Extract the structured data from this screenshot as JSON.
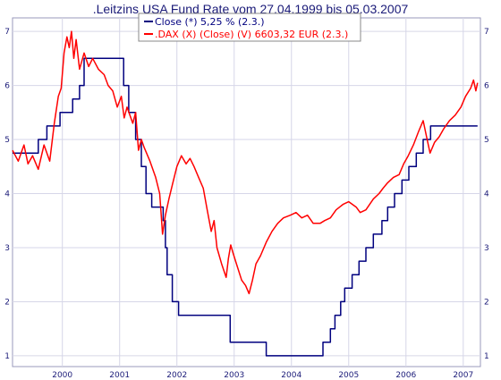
{
  "chart_data": {
    "type": "line",
    "title": ".Leitzins USA Fund Rate vom 27.04.1999 bis 05.03.2007",
    "xlim": [
      1999.05,
      2007.22
    ],
    "ylim": [
      0.8,
      7.25
    ],
    "x_ticks": [
      {
        "value": 1999.92,
        "label": "2000"
      },
      {
        "value": 2000.92,
        "label": "2001"
      },
      {
        "value": 2001.92,
        "label": "2002"
      },
      {
        "value": 2002.92,
        "label": "2003"
      },
      {
        "value": 2003.92,
        "label": "2004"
      },
      {
        "value": 2004.92,
        "label": "2005"
      },
      {
        "value": 2005.92,
        "label": "2006"
      },
      {
        "value": 2006.92,
        "label": "2007"
      }
    ],
    "y_ticks": [
      1,
      2,
      3,
      4,
      5,
      6,
      7
    ],
    "grid": true,
    "legend_placement": "top-center",
    "background": "#ffffff",
    "series": [
      {
        "name": "Close (*) 5,25 % (2.3.)",
        "color": "#00007f",
        "step": true,
        "points": [
          [
            1999.05,
            4.75
          ],
          [
            1999.5,
            5.0
          ],
          [
            1999.65,
            5.25
          ],
          [
            1999.88,
            5.5
          ],
          [
            2000.1,
            5.75
          ],
          [
            2000.22,
            6.0
          ],
          [
            2000.3,
            6.5
          ],
          [
            2000.99,
            6.0
          ],
          [
            2001.08,
            5.5
          ],
          [
            2001.2,
            5.0
          ],
          [
            2001.3,
            4.5
          ],
          [
            2001.38,
            4.0
          ],
          [
            2001.48,
            3.75
          ],
          [
            2001.68,
            3.5
          ],
          [
            2001.72,
            3.0
          ],
          [
            2001.75,
            2.5
          ],
          [
            2001.84,
            2.0
          ],
          [
            2001.95,
            1.75
          ],
          [
            2002.85,
            1.25
          ],
          [
            2003.48,
            1.0
          ],
          [
            2004.47,
            1.25
          ],
          [
            2004.6,
            1.5
          ],
          [
            2004.68,
            1.75
          ],
          [
            2004.78,
            2.0
          ],
          [
            2004.85,
            2.25
          ],
          [
            2004.98,
            2.5
          ],
          [
            2005.1,
            2.75
          ],
          [
            2005.22,
            3.0
          ],
          [
            2005.35,
            3.25
          ],
          [
            2005.5,
            3.5
          ],
          [
            2005.6,
            3.75
          ],
          [
            2005.72,
            4.0
          ],
          [
            2005.85,
            4.25
          ],
          [
            2005.97,
            4.5
          ],
          [
            2006.1,
            4.75
          ],
          [
            2006.22,
            5.0
          ],
          [
            2006.35,
            5.25
          ],
          [
            2007.17,
            5.25
          ]
        ]
      },
      {
        "name": ".DAX (X) (Close) (V) 6603,32 EUR (2.3.)",
        "color": "#ff0000",
        "step": false,
        "points": [
          [
            1999.05,
            4.8
          ],
          [
            1999.15,
            4.6
          ],
          [
            1999.25,
            4.9
          ],
          [
            1999.32,
            4.55
          ],
          [
            1999.4,
            4.7
          ],
          [
            1999.5,
            4.45
          ],
          [
            1999.6,
            4.9
          ],
          [
            1999.7,
            4.6
          ],
          [
            1999.78,
            5.3
          ],
          [
            1999.85,
            5.8
          ],
          [
            1999.9,
            5.95
          ],
          [
            1999.95,
            6.6
          ],
          [
            2000.0,
            6.9
          ],
          [
            2000.04,
            6.7
          ],
          [
            2000.08,
            7.0
          ],
          [
            2000.12,
            6.5
          ],
          [
            2000.16,
            6.85
          ],
          [
            2000.22,
            6.3
          ],
          [
            2000.3,
            6.6
          ],
          [
            2000.38,
            6.35
          ],
          [
            2000.45,
            6.5
          ],
          [
            2000.55,
            6.3
          ],
          [
            2000.65,
            6.2
          ],
          [
            2000.72,
            6.0
          ],
          [
            2000.8,
            5.9
          ],
          [
            2000.88,
            5.6
          ],
          [
            2000.95,
            5.8
          ],
          [
            2001.0,
            5.4
          ],
          [
            2001.05,
            5.6
          ],
          [
            2001.15,
            5.3
          ],
          [
            2001.2,
            5.5
          ],
          [
            2001.25,
            4.8
          ],
          [
            2001.3,
            5.0
          ],
          [
            2001.35,
            4.85
          ],
          [
            2001.45,
            4.6
          ],
          [
            2001.55,
            4.3
          ],
          [
            2001.62,
            4.0
          ],
          [
            2001.67,
            3.25
          ],
          [
            2001.72,
            3.6
          ],
          [
            2001.78,
            3.9
          ],
          [
            2001.85,
            4.2
          ],
          [
            2001.92,
            4.5
          ],
          [
            2002.0,
            4.7
          ],
          [
            2002.08,
            4.55
          ],
          [
            2002.15,
            4.65
          ],
          [
            2002.22,
            4.5
          ],
          [
            2002.3,
            4.3
          ],
          [
            2002.38,
            4.1
          ],
          [
            2002.45,
            3.7
          ],
          [
            2002.52,
            3.3
          ],
          [
            2002.57,
            3.5
          ],
          [
            2002.62,
            3.0
          ],
          [
            2002.7,
            2.7
          ],
          [
            2002.78,
            2.45
          ],
          [
            2002.82,
            2.8
          ],
          [
            2002.86,
            3.05
          ],
          [
            2002.9,
            2.9
          ],
          [
            2002.96,
            2.7
          ],
          [
            2003.05,
            2.4
          ],
          [
            2003.12,
            2.3
          ],
          [
            2003.18,
            2.15
          ],
          [
            2003.24,
            2.4
          ],
          [
            2003.3,
            2.7
          ],
          [
            2003.38,
            2.85
          ],
          [
            2003.48,
            3.1
          ],
          [
            2003.58,
            3.3
          ],
          [
            2003.68,
            3.45
          ],
          [
            2003.78,
            3.55
          ],
          [
            2003.9,
            3.6
          ],
          [
            2004.0,
            3.65
          ],
          [
            2004.1,
            3.55
          ],
          [
            2004.2,
            3.6
          ],
          [
            2004.3,
            3.45
          ],
          [
            2004.42,
            3.45
          ],
          [
            2004.5,
            3.5
          ],
          [
            2004.6,
            3.55
          ],
          [
            2004.7,
            3.7
          ],
          [
            2004.82,
            3.8
          ],
          [
            2004.92,
            3.85
          ],
          [
            2005.05,
            3.75
          ],
          [
            2005.12,
            3.65
          ],
          [
            2005.22,
            3.7
          ],
          [
            2005.35,
            3.9
          ],
          [
            2005.45,
            4.0
          ],
          [
            2005.52,
            4.1
          ],
          [
            2005.6,
            4.2
          ],
          [
            2005.7,
            4.3
          ],
          [
            2005.8,
            4.35
          ],
          [
            2005.88,
            4.55
          ],
          [
            2005.96,
            4.7
          ],
          [
            2006.05,
            4.9
          ],
          [
            2006.14,
            5.15
          ],
          [
            2006.22,
            5.35
          ],
          [
            2006.28,
            5.05
          ],
          [
            2006.34,
            4.75
          ],
          [
            2006.42,
            4.95
          ],
          [
            2006.5,
            5.05
          ],
          [
            2006.58,
            5.2
          ],
          [
            2006.68,
            5.35
          ],
          [
            2006.78,
            5.45
          ],
          [
            2006.88,
            5.6
          ],
          [
            2006.96,
            5.8
          ],
          [
            2007.05,
            5.95
          ],
          [
            2007.1,
            6.1
          ],
          [
            2007.14,
            5.9
          ],
          [
            2007.17,
            6.05
          ]
        ]
      }
    ]
  }
}
